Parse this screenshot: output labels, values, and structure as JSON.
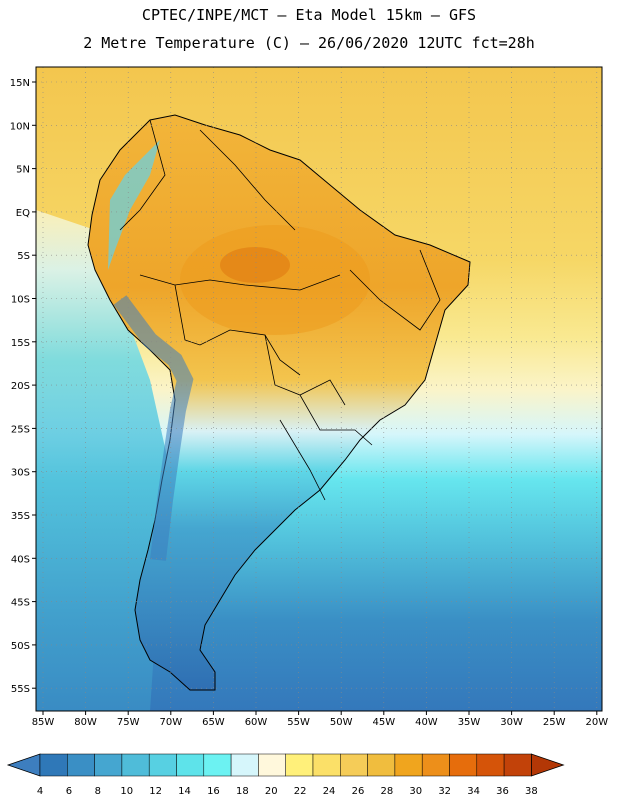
{
  "header": {
    "line1": "CPTEC/INPE/MCT –  Eta Model 15km – GFS",
    "line2": "2 Metre Temperature (C) – 26/06/2020 12UTC fct=28h"
  },
  "map": {
    "lat_labels": [
      "15N",
      "10N",
      "5N",
      "EQ",
      "5S",
      "10S",
      "15S",
      "20S",
      "25S",
      "30S",
      "35S",
      "40S",
      "45S",
      "50S",
      "55S"
    ],
    "lon_labels": [
      "85W",
      "80W",
      "75W",
      "70W",
      "65W",
      "60W",
      "55W",
      "50W",
      "45W",
      "40W",
      "35W",
      "30W",
      "25W",
      "20W"
    ]
  },
  "colorbar": {
    "labels": [
      "4",
      "6",
      "8",
      "10",
      "12",
      "14",
      "16",
      "18",
      "20",
      "22",
      "24",
      "26",
      "28",
      "30",
      "32",
      "34",
      "36",
      "38"
    ],
    "colors": [
      "#3d7ebf",
      "#2f78b8",
      "#3a8fc5",
      "#45a6d0",
      "#4fbcd9",
      "#57d0e2",
      "#5ee3ea",
      "#6cf2f2",
      "#d6f6fb",
      "#fff8dc",
      "#fff07a",
      "#fbe068",
      "#f5cc58",
      "#f0bd3e",
      "#f0a51e",
      "#ed8f1a",
      "#e66d0c",
      "#d55409",
      "#c24209",
      "#b33706"
    ]
  }
}
